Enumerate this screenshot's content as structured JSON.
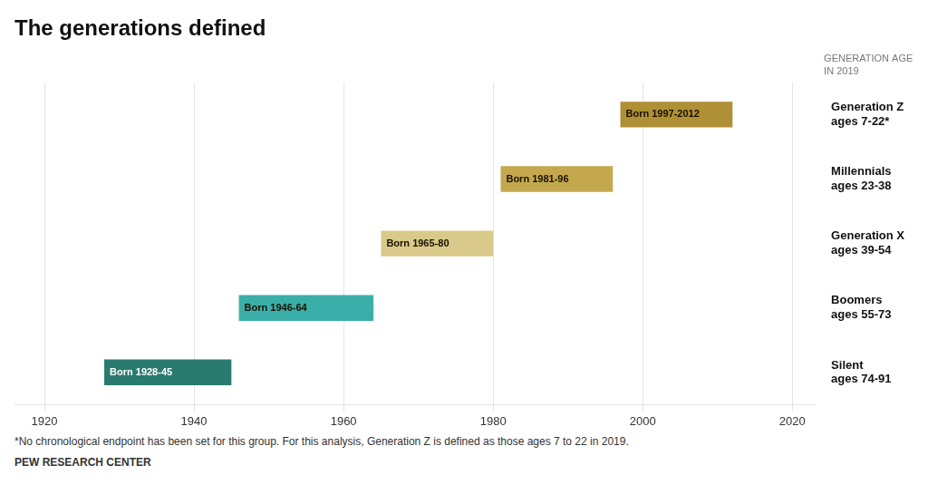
{
  "chart_data": {
    "type": "bar",
    "orientation": "horizontal",
    "title": "The generations defined",
    "subtitle": [
      "GENERATION AGE",
      "IN 2019"
    ],
    "annotations": [
      "*No chronological endpoint has been set for this group. For this analysis, Generation Z is defined as those ages 7 to 22 in 2019.",
      "PEW RESEARCH CENTER"
    ],
    "categories": [
      [
        "Generation Z",
        "ages 7-22*"
      ],
      [
        "Millennials",
        "ages 23-38"
      ],
      [
        "Generation X",
        "ages 39-54"
      ],
      [
        "Boomers",
        "ages 55-73"
      ],
      [
        "Silent",
        "ages 74-91"
      ]
    ],
    "values": [
      [
        1997,
        2012
      ],
      [
        1981,
        1996
      ],
      [
        1965,
        1980
      ],
      [
        1946,
        1964
      ],
      [
        1928,
        1945
      ]
    ],
    "value_labels": [
      "Born 1997-2012",
      "Born 1981-96",
      "Born 1965-80",
      "Born 1946-64",
      "Born 1928-45"
    ],
    "data_labels": true,
    "colors": [
      "#b09035",
      "#c4a84e",
      "#d9c98a",
      "#3aafa9",
      "#2a7b6f"
    ],
    "xlim": [
      1916,
      2023
    ],
    "xticks": [
      1920,
      1940,
      1960,
      1980,
      2000,
      2020
    ],
    "grid": true
  }
}
